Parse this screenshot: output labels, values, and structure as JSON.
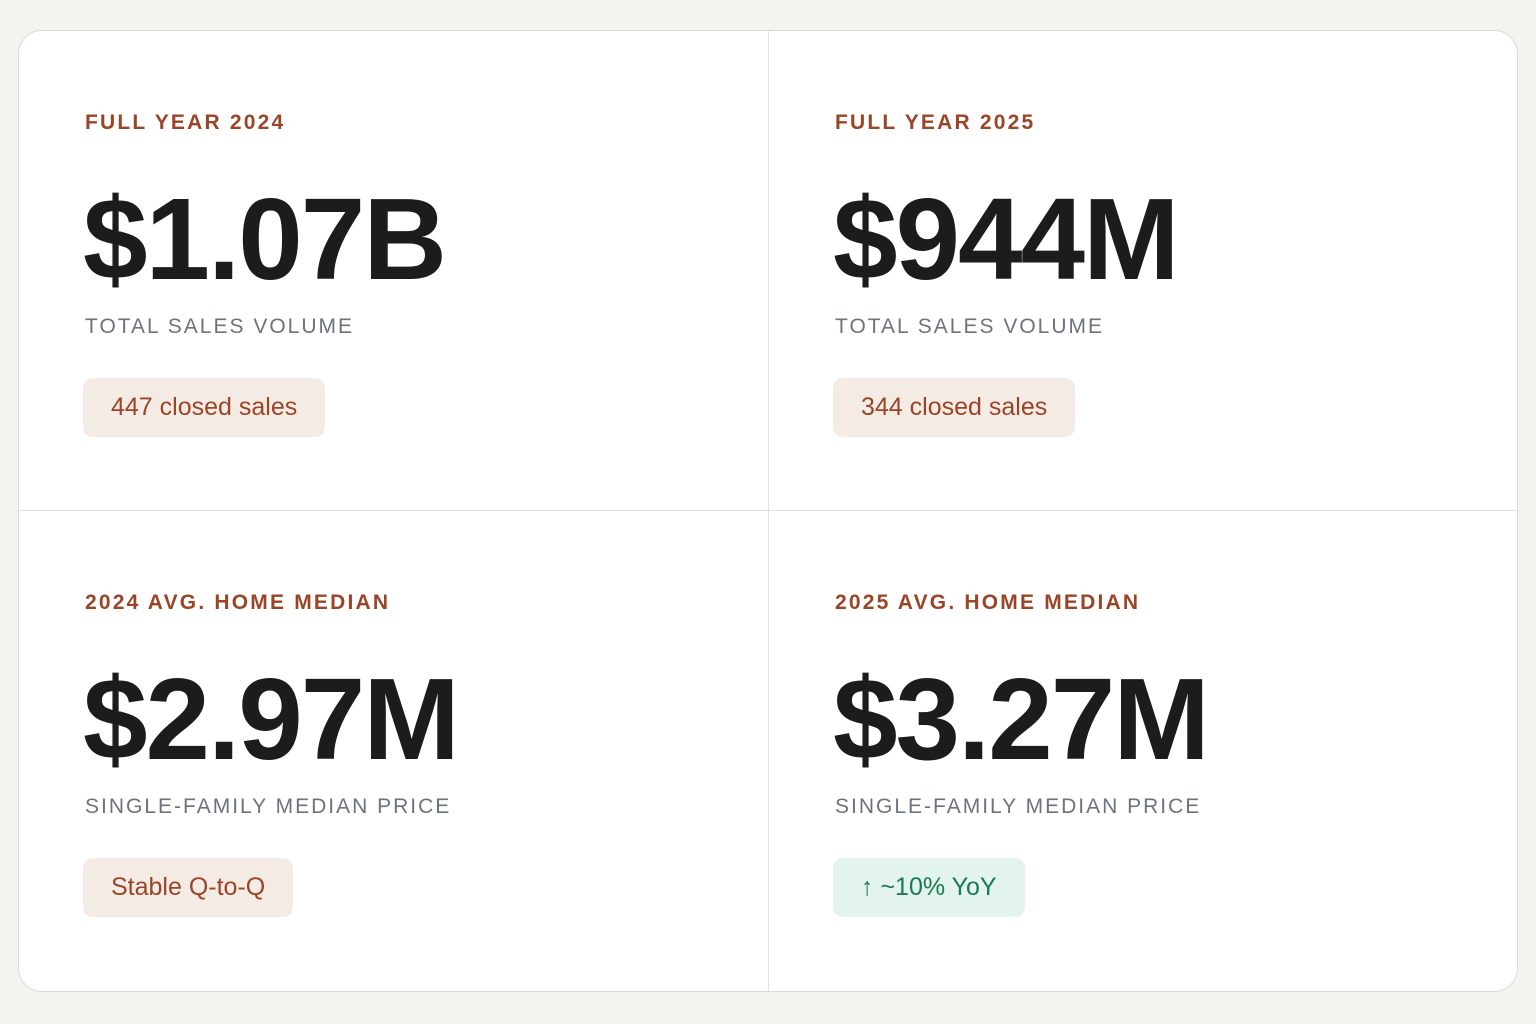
{
  "cards": [
    {
      "label": "FULL YEAR 2024",
      "value": "$1.07B",
      "caption": "TOTAL SALES VOLUME",
      "badge": "447 closed sales"
    },
    {
      "label": "FULL YEAR 2025",
      "value": "$944M",
      "caption": "TOTAL SALES VOLUME",
      "badge": "344 closed sales"
    },
    {
      "label": "2024 AVG. HOME MEDIAN",
      "value": "$2.97M",
      "caption": "SINGLE-FAMILY MEDIAN PRICE",
      "badge": "Stable Q-to-Q"
    },
    {
      "label": "2025 AVG. HOME MEDIAN",
      "value": "$3.27M",
      "caption": "SINGLE-FAMILY MEDIAN PRICE",
      "badge": "↑ ~10% YoY"
    }
  ]
}
